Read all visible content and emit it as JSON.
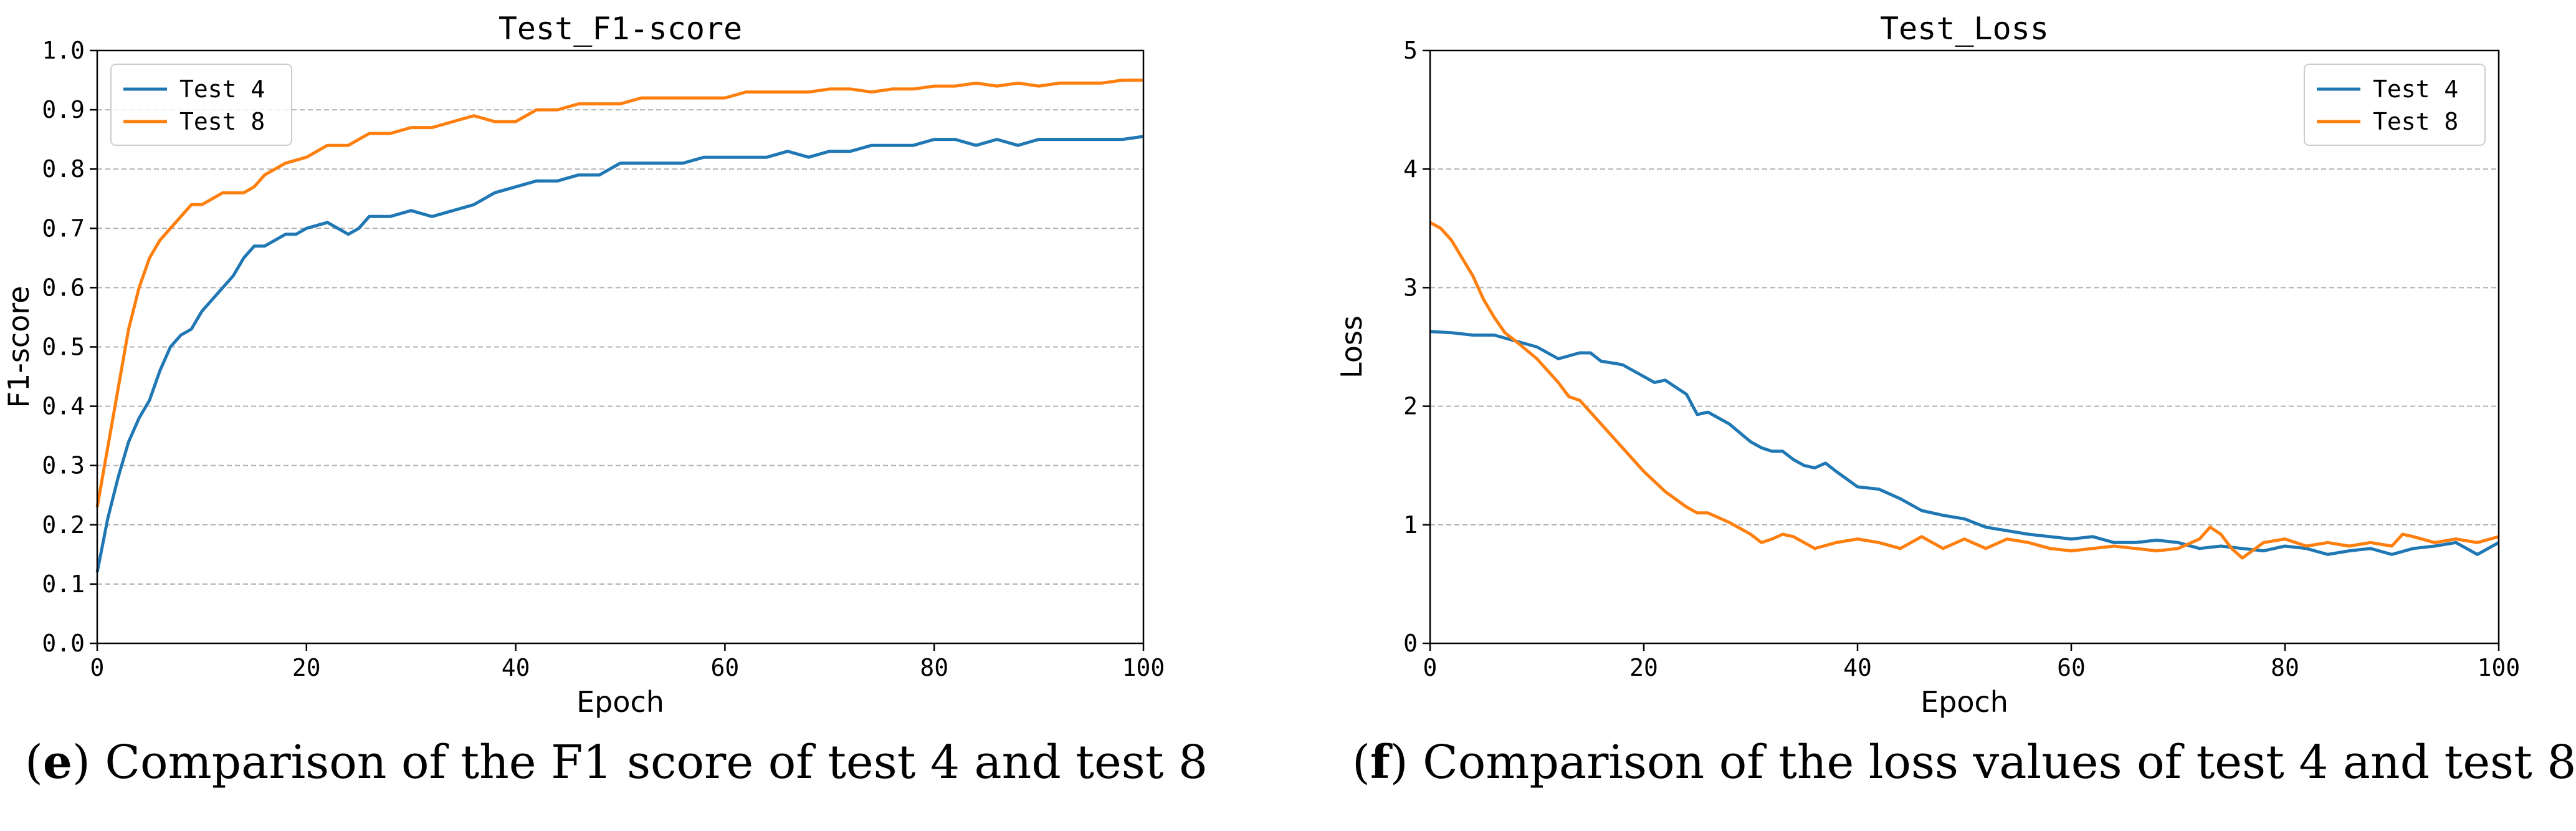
{
  "chart_data": [
    {
      "type": "line",
      "title": "Test_F1-score",
      "xlabel": "Epoch",
      "ylabel": "F1-score",
      "xlim": [
        0,
        100
      ],
      "ylim": [
        0.0,
        1.0
      ],
      "xticks": [
        "0",
        "20",
        "40",
        "60",
        "80",
        "100"
      ],
      "yticks": [
        "0.0",
        "0.1",
        "0.2",
        "0.3",
        "0.4",
        "0.5",
        "0.6",
        "0.7",
        "0.8",
        "0.9",
        "1.0"
      ],
      "grid": "horizontal dashed",
      "legend": "top-left",
      "series": [
        {
          "name": "Test 4",
          "color": "#1f77b4",
          "x": [
            0,
            1,
            2,
            3,
            4,
            5,
            6,
            7,
            8,
            9,
            10,
            11,
            12,
            13,
            14,
            15,
            16,
            17,
            18,
            19,
            20,
            22,
            23,
            24,
            25,
            26,
            28,
            30,
            32,
            34,
            36,
            38,
            40,
            42,
            44,
            46,
            48,
            50,
            52,
            54,
            56,
            58,
            60,
            62,
            64,
            66,
            68,
            70,
            72,
            74,
            76,
            78,
            80,
            82,
            84,
            86,
            88,
            90,
            92,
            94,
            96,
            98,
            100
          ],
          "values": [
            0.12,
            0.21,
            0.28,
            0.34,
            0.38,
            0.41,
            0.46,
            0.5,
            0.52,
            0.53,
            0.56,
            0.58,
            0.6,
            0.62,
            0.65,
            0.67,
            0.67,
            0.68,
            0.69,
            0.69,
            0.7,
            0.71,
            0.7,
            0.69,
            0.7,
            0.72,
            0.72,
            0.73,
            0.72,
            0.73,
            0.74,
            0.76,
            0.77,
            0.78,
            0.78,
            0.79,
            0.79,
            0.81,
            0.81,
            0.81,
            0.81,
            0.82,
            0.82,
            0.82,
            0.82,
            0.83,
            0.82,
            0.83,
            0.83,
            0.84,
            0.84,
            0.84,
            0.85,
            0.85,
            0.84,
            0.85,
            0.84,
            0.85,
            0.85,
            0.85,
            0.85,
            0.85,
            0.855
          ]
        },
        {
          "name": "Test 8",
          "color": "#ff7f0e",
          "x": [
            0,
            1,
            2,
            3,
            4,
            5,
            6,
            7,
            8,
            9,
            10,
            11,
            12,
            13,
            14,
            15,
            16,
            17,
            18,
            20,
            22,
            24,
            26,
            28,
            30,
            32,
            34,
            36,
            38,
            40,
            42,
            44,
            46,
            48,
            50,
            52,
            54,
            56,
            58,
            60,
            62,
            64,
            66,
            68,
            70,
            72,
            74,
            76,
            78,
            80,
            82,
            84,
            86,
            88,
            90,
            92,
            94,
            96,
            98,
            100
          ],
          "values": [
            0.23,
            0.33,
            0.43,
            0.53,
            0.6,
            0.65,
            0.68,
            0.7,
            0.72,
            0.74,
            0.74,
            0.75,
            0.76,
            0.76,
            0.76,
            0.77,
            0.79,
            0.8,
            0.81,
            0.82,
            0.84,
            0.84,
            0.86,
            0.86,
            0.87,
            0.87,
            0.88,
            0.89,
            0.88,
            0.88,
            0.9,
            0.9,
            0.91,
            0.91,
            0.91,
            0.92,
            0.92,
            0.92,
            0.92,
            0.92,
            0.93,
            0.93,
            0.93,
            0.93,
            0.935,
            0.935,
            0.93,
            0.935,
            0.935,
            0.94,
            0.94,
            0.945,
            0.94,
            0.945,
            0.94,
            0.945,
            0.945,
            0.945,
            0.95,
            0.95
          ]
        }
      ]
    },
    {
      "type": "line",
      "title": "Test_Loss",
      "xlabel": "Epoch",
      "ylabel": "Loss",
      "xlim": [
        0,
        100
      ],
      "ylim": [
        0,
        5
      ],
      "xticks": [
        "0",
        "20",
        "40",
        "60",
        "80",
        "100"
      ],
      "yticks": [
        "0",
        "1",
        "2",
        "3",
        "4",
        "5"
      ],
      "grid": "horizontal dashed",
      "legend": "top-right",
      "series": [
        {
          "name": "Test 4",
          "color": "#1f77b4",
          "x": [
            0,
            2,
            4,
            6,
            8,
            10,
            12,
            14,
            15,
            16,
            18,
            20,
            21,
            22,
            24,
            25,
            26,
            28,
            30,
            31,
            32,
            33,
            34,
            35,
            36,
            37,
            38,
            40,
            42,
            44,
            46,
            48,
            50,
            52,
            54,
            56,
            58,
            60,
            62,
            64,
            66,
            68,
            70,
            72,
            74,
            76,
            78,
            80,
            82,
            84,
            86,
            88,
            90,
            92,
            94,
            96,
            98,
            100
          ],
          "values": [
            2.63,
            2.62,
            2.6,
            2.6,
            2.55,
            2.5,
            2.4,
            2.45,
            2.45,
            2.38,
            2.35,
            2.25,
            2.2,
            2.22,
            2.1,
            1.93,
            1.95,
            1.85,
            1.7,
            1.65,
            1.62,
            1.62,
            1.55,
            1.5,
            1.48,
            1.52,
            1.45,
            1.32,
            1.3,
            1.22,
            1.12,
            1.08,
            1.05,
            0.98,
            0.95,
            0.92,
            0.9,
            0.88,
            0.9,
            0.85,
            0.85,
            0.87,
            0.85,
            0.8,
            0.82,
            0.8,
            0.78,
            0.82,
            0.8,
            0.75,
            0.78,
            0.8,
            0.75,
            0.8,
            0.82,
            0.85,
            0.75,
            0.85
          ]
        },
        {
          "name": "Test 8",
          "color": "#ff7f0e",
          "x": [
            0,
            1,
            2,
            3,
            4,
            5,
            6,
            7,
            8,
            10,
            12,
            13,
            14,
            15,
            16,
            18,
            20,
            22,
            24,
            25,
            26,
            28,
            30,
            31,
            32,
            33,
            34,
            35,
            36,
            38,
            40,
            42,
            44,
            46,
            48,
            50,
            52,
            54,
            56,
            58,
            60,
            62,
            64,
            66,
            68,
            70,
            72,
            73,
            74,
            75,
            76,
            78,
            80,
            82,
            84,
            86,
            88,
            90,
            91,
            92,
            94,
            96,
            98,
            100
          ],
          "values": [
            3.55,
            3.5,
            3.4,
            3.25,
            3.1,
            2.9,
            2.75,
            2.62,
            2.55,
            2.4,
            2.2,
            2.08,
            2.05,
            1.95,
            1.85,
            1.65,
            1.45,
            1.28,
            1.15,
            1.1,
            1.1,
            1.02,
            0.92,
            0.85,
            0.88,
            0.92,
            0.9,
            0.85,
            0.8,
            0.85,
            0.88,
            0.85,
            0.8,
            0.9,
            0.8,
            0.88,
            0.8,
            0.88,
            0.85,
            0.8,
            0.78,
            0.8,
            0.82,
            0.8,
            0.78,
            0.8,
            0.88,
            0.98,
            0.92,
            0.8,
            0.72,
            0.85,
            0.88,
            0.82,
            0.85,
            0.82,
            0.85,
            0.82,
            0.92,
            0.9,
            0.85,
            0.88,
            0.85,
            0.9
          ]
        }
      ]
    }
  ],
  "captions": [
    {
      "label": "e",
      "text": ") Comparison of the F1 score of test 4 and test 8"
    },
    {
      "label": "f",
      "text": ") Comparison of the loss values of test 4 and test 8"
    }
  ]
}
